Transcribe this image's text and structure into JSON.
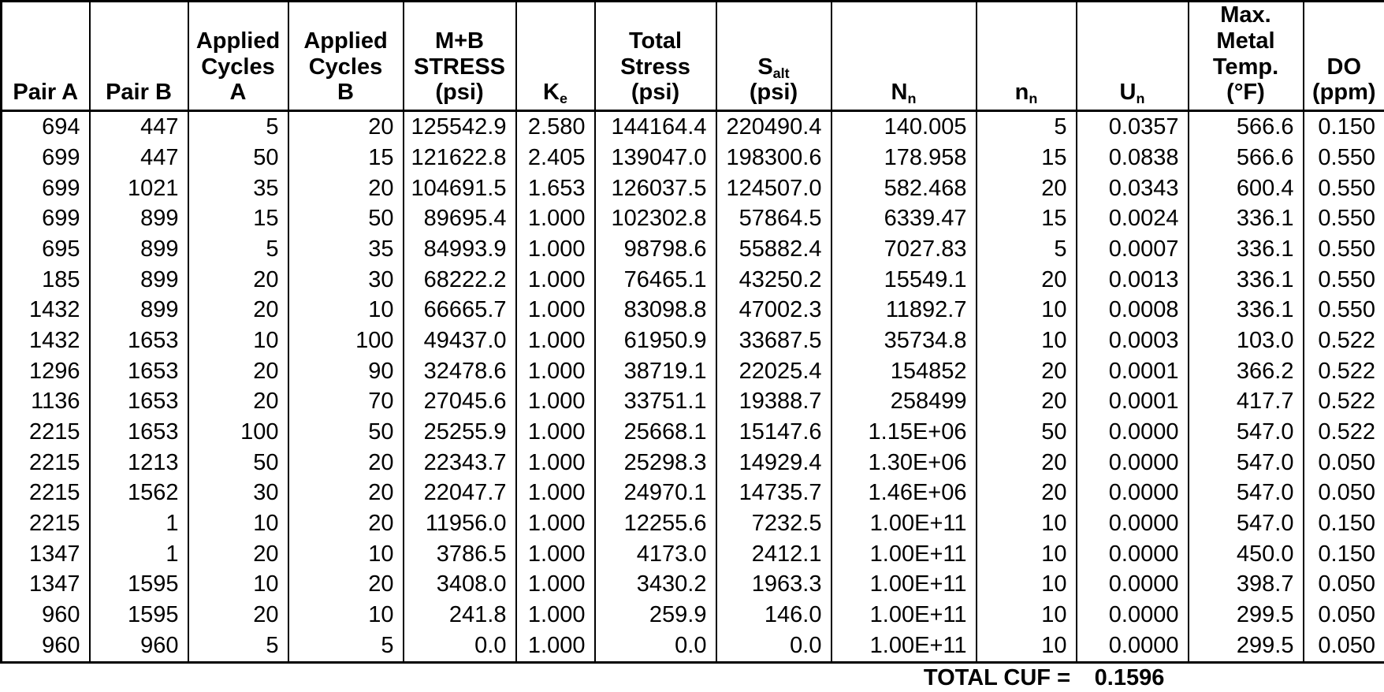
{
  "table": {
    "columns": [
      {
        "id": "pair-a",
        "label": "Pair A"
      },
      {
        "id": "pair-b",
        "label": "Pair B"
      },
      {
        "id": "applied-cycles-a",
        "label": "Applied\nCycles\nA"
      },
      {
        "id": "applied-cycles-b",
        "label": "Applied\nCycles\nB"
      },
      {
        "id": "mb-stress-psi",
        "label": "M+B\nSTRESS\n(psi)"
      },
      {
        "id": "ke",
        "label": "K~e~"
      },
      {
        "id": "total-stress-psi",
        "label": "Total\nStress\n(psi)"
      },
      {
        "id": "salt-psi",
        "label": "S~alt~\n(psi)"
      },
      {
        "id": "nn-allowable",
        "label": "N~n~"
      },
      {
        "id": "nn-applied",
        "label": "n~n~"
      },
      {
        "id": "un",
        "label": "U~n~"
      },
      {
        "id": "max-metal-temp-f",
        "label": "Max.\nMetal\nTemp.\n(°F)"
      },
      {
        "id": "do-ppm",
        "label": "DO\n(ppm)"
      }
    ],
    "rows": [
      [
        "694",
        "447",
        "5",
        "20",
        "125542.9",
        "2.580",
        "144164.4",
        "220490.4",
        "140.005",
        "5",
        "0.0357",
        "566.6",
        "0.150"
      ],
      [
        "699",
        "447",
        "50",
        "15",
        "121622.8",
        "2.405",
        "139047.0",
        "198300.6",
        "178.958",
        "15",
        "0.0838",
        "566.6",
        "0.550"
      ],
      [
        "699",
        "1021",
        "35",
        "20",
        "104691.5",
        "1.653",
        "126037.5",
        "124507.0",
        "582.468",
        "20",
        "0.0343",
        "600.4",
        "0.550"
      ],
      [
        "699",
        "899",
        "15",
        "50",
        "89695.4",
        "1.000",
        "102302.8",
        "57864.5",
        "6339.47",
        "15",
        "0.0024",
        "336.1",
        "0.550"
      ],
      [
        "695",
        "899",
        "5",
        "35",
        "84993.9",
        "1.000",
        "98798.6",
        "55882.4",
        "7027.83",
        "5",
        "0.0007",
        "336.1",
        "0.550"
      ],
      [
        "185",
        "899",
        "20",
        "30",
        "68222.2",
        "1.000",
        "76465.1",
        "43250.2",
        "15549.1",
        "20",
        "0.0013",
        "336.1",
        "0.550"
      ],
      [
        "1432",
        "899",
        "20",
        "10",
        "66665.7",
        "1.000",
        "83098.8",
        "47002.3",
        "11892.7",
        "10",
        "0.0008",
        "336.1",
        "0.550"
      ],
      [
        "1432",
        "1653",
        "10",
        "100",
        "49437.0",
        "1.000",
        "61950.9",
        "33687.5",
        "35734.8",
        "10",
        "0.0003",
        "103.0",
        "0.522"
      ],
      [
        "1296",
        "1653",
        "20",
        "90",
        "32478.6",
        "1.000",
        "38719.1",
        "22025.4",
        "154852",
        "20",
        "0.0001",
        "366.2",
        "0.522"
      ],
      [
        "1136",
        "1653",
        "20",
        "70",
        "27045.6",
        "1.000",
        "33751.1",
        "19388.7",
        "258499",
        "20",
        "0.0001",
        "417.7",
        "0.522"
      ],
      [
        "2215",
        "1653",
        "100",
        "50",
        "25255.9",
        "1.000",
        "25668.1",
        "15147.6",
        "1.15E+06",
        "50",
        "0.0000",
        "547.0",
        "0.522"
      ],
      [
        "2215",
        "1213",
        "50",
        "20",
        "22343.7",
        "1.000",
        "25298.3",
        "14929.4",
        "1.30E+06",
        "20",
        "0.0000",
        "547.0",
        "0.050"
      ],
      [
        "2215",
        "1562",
        "30",
        "20",
        "22047.7",
        "1.000",
        "24970.1",
        "14735.7",
        "1.46E+06",
        "20",
        "0.0000",
        "547.0",
        "0.050"
      ],
      [
        "2215",
        "1",
        "10",
        "20",
        "11956.0",
        "1.000",
        "12255.6",
        "7232.5",
        "1.00E+11",
        "10",
        "0.0000",
        "547.0",
        "0.150"
      ],
      [
        "1347",
        "1",
        "20",
        "10",
        "3786.5",
        "1.000",
        "4173.0",
        "2412.1",
        "1.00E+11",
        "10",
        "0.0000",
        "450.0",
        "0.150"
      ],
      [
        "1347",
        "1595",
        "10",
        "20",
        "3408.0",
        "1.000",
        "3430.2",
        "1963.3",
        "1.00E+11",
        "10",
        "0.0000",
        "398.7",
        "0.050"
      ],
      [
        "960",
        "1595",
        "20",
        "10",
        "241.8",
        "1.000",
        "259.9",
        "146.0",
        "1.00E+11",
        "10",
        "0.0000",
        "299.5",
        "0.050"
      ],
      [
        "960",
        "960",
        "5",
        "5",
        "0.0",
        "1.000",
        "0.0",
        "0.0",
        "1.00E+11",
        "10",
        "0.0000",
        "299.5",
        "0.050"
      ]
    ]
  },
  "footer": {
    "label": "TOTAL CUF =",
    "value": "0.1596"
  }
}
